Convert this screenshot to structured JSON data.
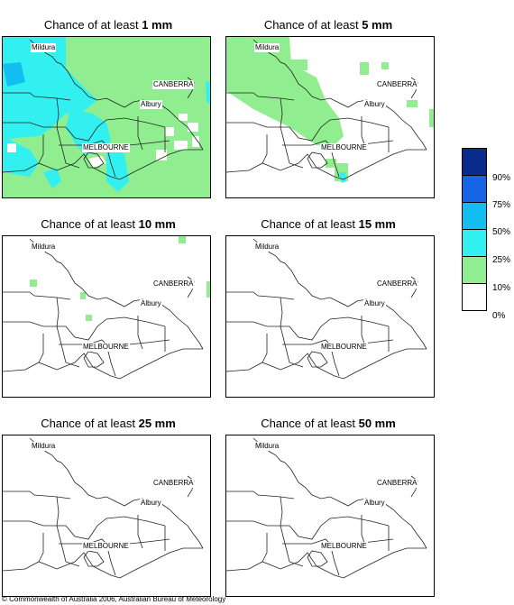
{
  "panels": [
    {
      "prefix": "Chance of at least ",
      "amount": "1 mm"
    },
    {
      "prefix": "Chance of at least ",
      "amount": "5 mm"
    },
    {
      "prefix": "Chance of at least ",
      "amount": "10 mm"
    },
    {
      "prefix": "Chance of at least ",
      "amount": "15 mm"
    },
    {
      "prefix": "Chance of at least ",
      "amount": "25 mm"
    },
    {
      "prefix": "Chance of at least ",
      "amount": "50 mm"
    }
  ],
  "cities": {
    "mildura": "Mildura",
    "canberra": "CANBERRA",
    "albury": "Albury",
    "melbourne": "MELBOURNE"
  },
  "legend": {
    "items": [
      {
        "label": "90%",
        "color": "#0a2b8c"
      },
      {
        "label": "75%",
        "color": "#1565e6"
      },
      {
        "label": "50%",
        "color": "#12bff0"
      },
      {
        "label": "25%",
        "color": "#33f0f0"
      },
      {
        "label": "10%",
        "color": "#90ee90"
      },
      {
        "label": "0%",
        "color": "#ffffff"
      }
    ]
  },
  "copyright": "© Commonwealth of Australia 2006, Australian Bureau of Meteorology"
}
